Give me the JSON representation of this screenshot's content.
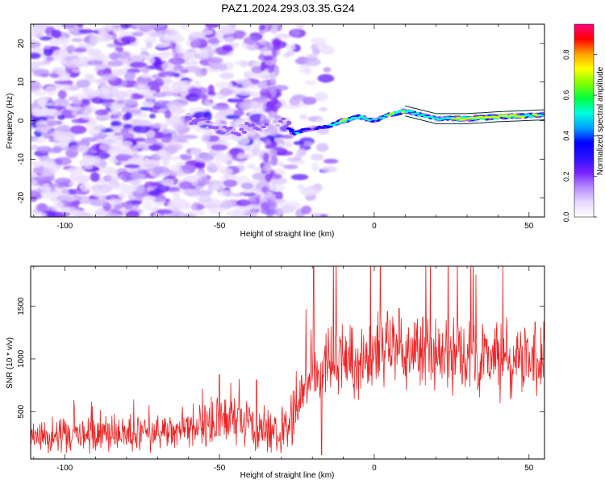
{
  "figure": {
    "title": "PAZ1.2024.293.03.35.G24"
  },
  "chart_data": [
    {
      "type": "heatmap",
      "title": "PAZ1.2024.293.03.35.G24",
      "xlabel": "Height of straight line (km)",
      "ylabel": "Frequency (Hz)",
      "xlim": [
        -111,
        55
      ],
      "ylim": [
        -25,
        25
      ],
      "x_ticks": [
        -100,
        -50,
        0,
        50
      ],
      "x_tick_labels": [
        "-100",
        "-50",
        "0",
        "50"
      ],
      "y_ticks": [
        -20,
        -10,
        0,
        10,
        20
      ],
      "y_tick_labels": [
        "-20",
        "-10",
        "0",
        "10",
        "20"
      ],
      "colorbar": {
        "label": "Normalized spectral amplitude",
        "range": [
          0,
          0.95
        ],
        "ticks": [
          0.0,
          0.2,
          0.4,
          0.6,
          0.8
        ],
        "tick_labels": [
          "0.0",
          "0.2",
          "0.4",
          "0.6",
          "0.8"
        ],
        "colors": [
          "#ffffff",
          "#e6d6ff",
          "#b48cff",
          "#7a22ff",
          "#2a10ff",
          "#0000ff",
          "#00a0ff",
          "#00ffe0",
          "#00ff40",
          "#80ff00",
          "#ffff00",
          "#ffa000",
          "#ff0000",
          "#ff0080"
        ]
      },
      "signal_trace": {
        "x": [
          -60,
          -55,
          -50,
          -45,
          -40,
          -35,
          -30,
          -25,
          -20,
          -15,
          -10,
          -5,
          0,
          5,
          10,
          15,
          20,
          30,
          40,
          55
        ],
        "frequency": [
          0.5,
          -0.5,
          -2.5,
          -3.0,
          -1.5,
          -2.0,
          0.0,
          -3.0,
          -2.0,
          -1.5,
          0.0,
          1.0,
          0.0,
          1.5,
          2.5,
          1.5,
          0.5,
          0.5,
          1.0,
          1.5
        ],
        "amplitude": [
          0.25,
          0.18,
          0.22,
          0.2,
          0.25,
          0.18,
          0.15,
          0.55,
          0.35,
          0.4,
          0.75,
          0.6,
          0.45,
          0.65,
          0.7,
          0.55,
          0.5,
          0.85,
          0.8,
          0.6
        ]
      }
    },
    {
      "type": "line",
      "xlabel": "Height of straight line (km)",
      "ylabel": "SNR (10 * v/v)",
      "xlim": [
        -111,
        55
      ],
      "ylim": [
        50,
        1880
      ],
      "x_ticks": [
        -100,
        -50,
        0,
        50
      ],
      "x_tick_labels": [
        "-100",
        "-50",
        "0",
        "50"
      ],
      "y_ticks": [
        500,
        1000,
        1500
      ],
      "y_tick_labels": [
        "500",
        "1000",
        "1500"
      ],
      "color": "#ee2222",
      "series": [
        {
          "x": [
            -111,
            -105,
            -100,
            -95,
            -90,
            -85,
            -80,
            -75,
            -70,
            -65,
            -60,
            -55,
            -50,
            -45,
            -40,
            -35,
            -30,
            -26,
            -22,
            -20,
            -18,
            -15,
            -10,
            -5,
            0,
            5,
            10,
            15,
            20,
            25,
            30,
            35,
            40,
            45,
            50,
            55
          ],
          "values": [
            250,
            270,
            290,
            280,
            300,
            290,
            280,
            300,
            300,
            320,
            330,
            350,
            380,
            400,
            370,
            330,
            300,
            450,
            750,
            1000,
            850,
            950,
            1000,
            950,
            1050,
            1050,
            1100,
            1050,
            1000,
            1050,
            1000,
            980,
            1000,
            1000,
            1000,
            1020
          ],
          "peaks": [
            {
              "x": -111,
              "value": 580
            },
            {
              "x": -50,
              "value": 850
            },
            {
              "x": -38,
              "value": 800
            },
            {
              "x": -19.5,
              "value": 1880
            },
            {
              "x": -17,
              "value": 90
            },
            {
              "x": 8,
              "value": 1480
            },
            {
              "x": 52,
              "value": 1350
            }
          ]
        }
      ]
    }
  ]
}
